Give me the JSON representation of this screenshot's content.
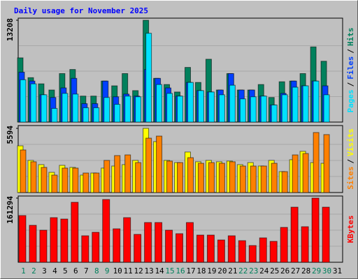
{
  "chart_data": [
    {
      "type": "bar",
      "title": "Daily usage for November 2025",
      "legend_separator": "/",
      "ylim": [
        0,
        13208
      ],
      "yticks": [
        13208
      ],
      "series": [
        {
          "name": "Hits",
          "color": "#00805c",
          "values": [
            8330,
            5760,
            4960,
            4160,
            6290,
            6820,
            3370,
            3370,
            5320,
            4700,
            6290,
            4080,
            13208,
            5670,
            4870,
            3900,
            7090,
            5140,
            8150,
            4160,
            6290,
            4160,
            4160,
            4870,
            3190,
            5230,
            5320,
            6290,
            9750,
            7890,
            null
          ]
        },
        {
          "name": "Files",
          "color": "#0040ff",
          "values": [
            6470,
            5320,
            3540,
            3190,
            4430,
            5670,
            2390,
            2390,
            5320,
            3280,
            3630,
            3370,
            6820,
            5670,
            4430,
            3370,
            5140,
            4080,
            3900,
            4160,
            6290,
            4160,
            4160,
            3370,
            2220,
            3720,
            5320,
            4700,
            5320,
            4700,
            null
          ]
        },
        {
          "name": "Pages",
          "color": "#00e1ff",
          "values": [
            5490,
            4960,
            3540,
            1770,
            3720,
            3630,
            1860,
            1860,
            3190,
            2300,
            3370,
            3280,
            11520,
            4870,
            3720,
            3370,
            5140,
            4080,
            3900,
            3540,
            4780,
            3010,
            3280,
            3370,
            2220,
            3540,
            4520,
            4700,
            5320,
            3540,
            null
          ]
        }
      ]
    },
    {
      "type": "bar",
      "legend_separator": "/",
      "ylim": [
        0,
        5594
      ],
      "yticks": [
        5594
      ],
      "series": [
        {
          "name": "Visits",
          "color": "#ffff00",
          "values": [
            4070,
            2800,
            2430,
            1760,
            2370,
            2190,
            1520,
            1700,
            2130,
            2310,
            2430,
            2800,
            5594,
            4440,
            2800,
            2610,
            3530,
            2680,
            2800,
            2680,
            2740,
            2430,
            2610,
            2310,
            2800,
            1820,
            2860,
            3590,
            2610,
            2550,
            null
          ]
        },
        {
          "name": "Sites",
          "color": "#ff8000",
          "values": [
            3710,
            2680,
            2190,
            1520,
            2130,
            2130,
            1700,
            1700,
            2800,
            3220,
            3280,
            2610,
            4740,
            4920,
            2740,
            2610,
            3040,
            2550,
            2610,
            2550,
            2680,
            2310,
            2310,
            2310,
            2550,
            1820,
            3280,
            3400,
            5230,
            5050,
            null
          ]
        }
      ]
    },
    {
      "type": "bar",
      "ylim": [
        0,
        161294
      ],
      "yticks": [
        161294
      ],
      "categories": [
        "1",
        "2",
        "3",
        "4",
        "5",
        "6",
        "7",
        "8",
        "9",
        "10",
        "11",
        "12",
        "13",
        "14",
        "15",
        "16",
        "17",
        "18",
        "19",
        "20",
        "21",
        "22",
        "23",
        "24",
        "25",
        "26",
        "27",
        "28",
        "29",
        "30",
        "31"
      ],
      "category_colors": [
        "#00805c",
        "#00805c",
        "#000000",
        "#000000",
        "#000000",
        "#000000",
        "#000000",
        "#00805c",
        "#00805c",
        "#000000",
        "#000000",
        "#000000",
        "#000000",
        "#000000",
        "#00805c",
        "#00805c",
        "#000000",
        "#000000",
        "#000000",
        "#000000",
        "#000000",
        "#00805c",
        "#00805c",
        "#000000",
        "#000000",
        "#000000",
        "#000000",
        "#000000",
        "#00805c",
        "#00805c",
        "#000000"
      ],
      "series": [
        {
          "name": "KBytes",
          "color": "#ff0000",
          "values": [
            117450,
            92910,
            80640,
            112190,
            108690,
            150760,
            66610,
            75380,
            157770,
            84140,
            112190,
            70120,
            99920,
            99920,
            80640,
            71870,
            99920,
            68370,
            68370,
            56100,
            66610,
            54340,
            42070,
            61360,
            52590,
            87650,
            138490,
            89400,
            161294,
            138490,
            null
          ]
        }
      ]
    }
  ]
}
